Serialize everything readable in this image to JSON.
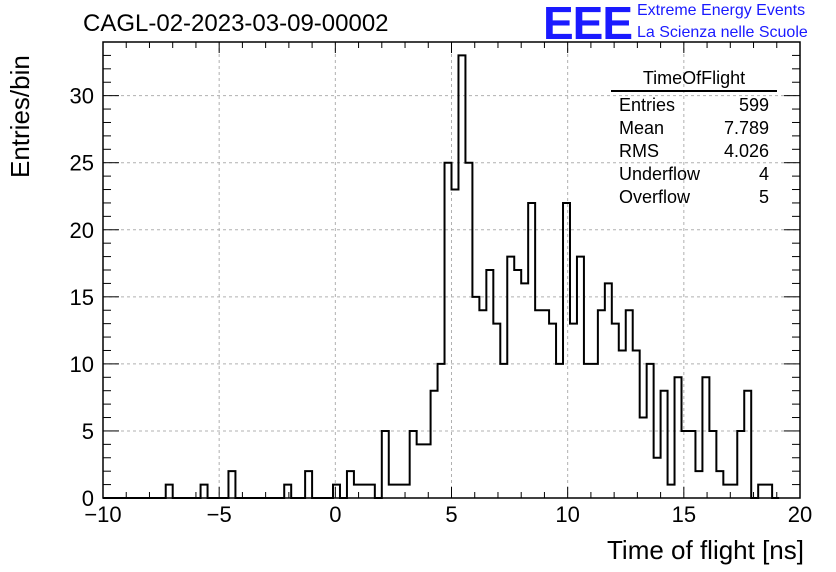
{
  "chart_data": {
    "type": "histogram",
    "title": "CAGL-02-2023-03-09-00002",
    "xlabel": "Time of flight [ns]",
    "ylabel": "Entries/bin",
    "xlim": [
      -10,
      20
    ],
    "ylim": [
      0,
      34
    ],
    "bin_width": 0.3,
    "grid": true,
    "x_ticks": [
      "−10",
      "−5",
      "0",
      "5",
      "10",
      "15",
      "20"
    ],
    "y_ticks": [
      "0",
      "5",
      "10",
      "15",
      "20",
      "25",
      "30"
    ],
    "bin_values": [
      0,
      0,
      0,
      0,
      0,
      0,
      0,
      0,
      0,
      1,
      0,
      0,
      0,
      0,
      1,
      0,
      0,
      0,
      2,
      0,
      0,
      0,
      0,
      0,
      0,
      0,
      1,
      0,
      0,
      2,
      0,
      0,
      0,
      1,
      0,
      2,
      1,
      1,
      1,
      0,
      5,
      1,
      1,
      1,
      5,
      4,
      4,
      8,
      10,
      25,
      23,
      33,
      25,
      15,
      14,
      17,
      13,
      10,
      18,
      17,
      16,
      22,
      14,
      14,
      13,
      10,
      22,
      13,
      18,
      10,
      10,
      14,
      16,
      13,
      11,
      14,
      11,
      6,
      10,
      3,
      8,
      1,
      9,
      5,
      5,
      2,
      9,
      5,
      2,
      1,
      1,
      5,
      8,
      0,
      1,
      1,
      0
    ],
    "bins_x_start": -10.0
  },
  "stats_box": {
    "title": "TimeOfFlight",
    "rows": [
      {
        "label": "Entries",
        "value": "599"
      },
      {
        "label": "Mean",
        "value": "7.789"
      },
      {
        "label": "RMS",
        "value": "4.026"
      },
      {
        "label": "Underflow",
        "value": "4"
      },
      {
        "label": "Overflow",
        "value": "5"
      }
    ]
  },
  "logo": {
    "mark": "EEE",
    "line1": "Extreme Energy Events",
    "line2": "La Scienza nelle Scuole"
  },
  "colors": {
    "line": "#000000",
    "grid": "#b0b0b0",
    "logo": "#1a1aff"
  }
}
